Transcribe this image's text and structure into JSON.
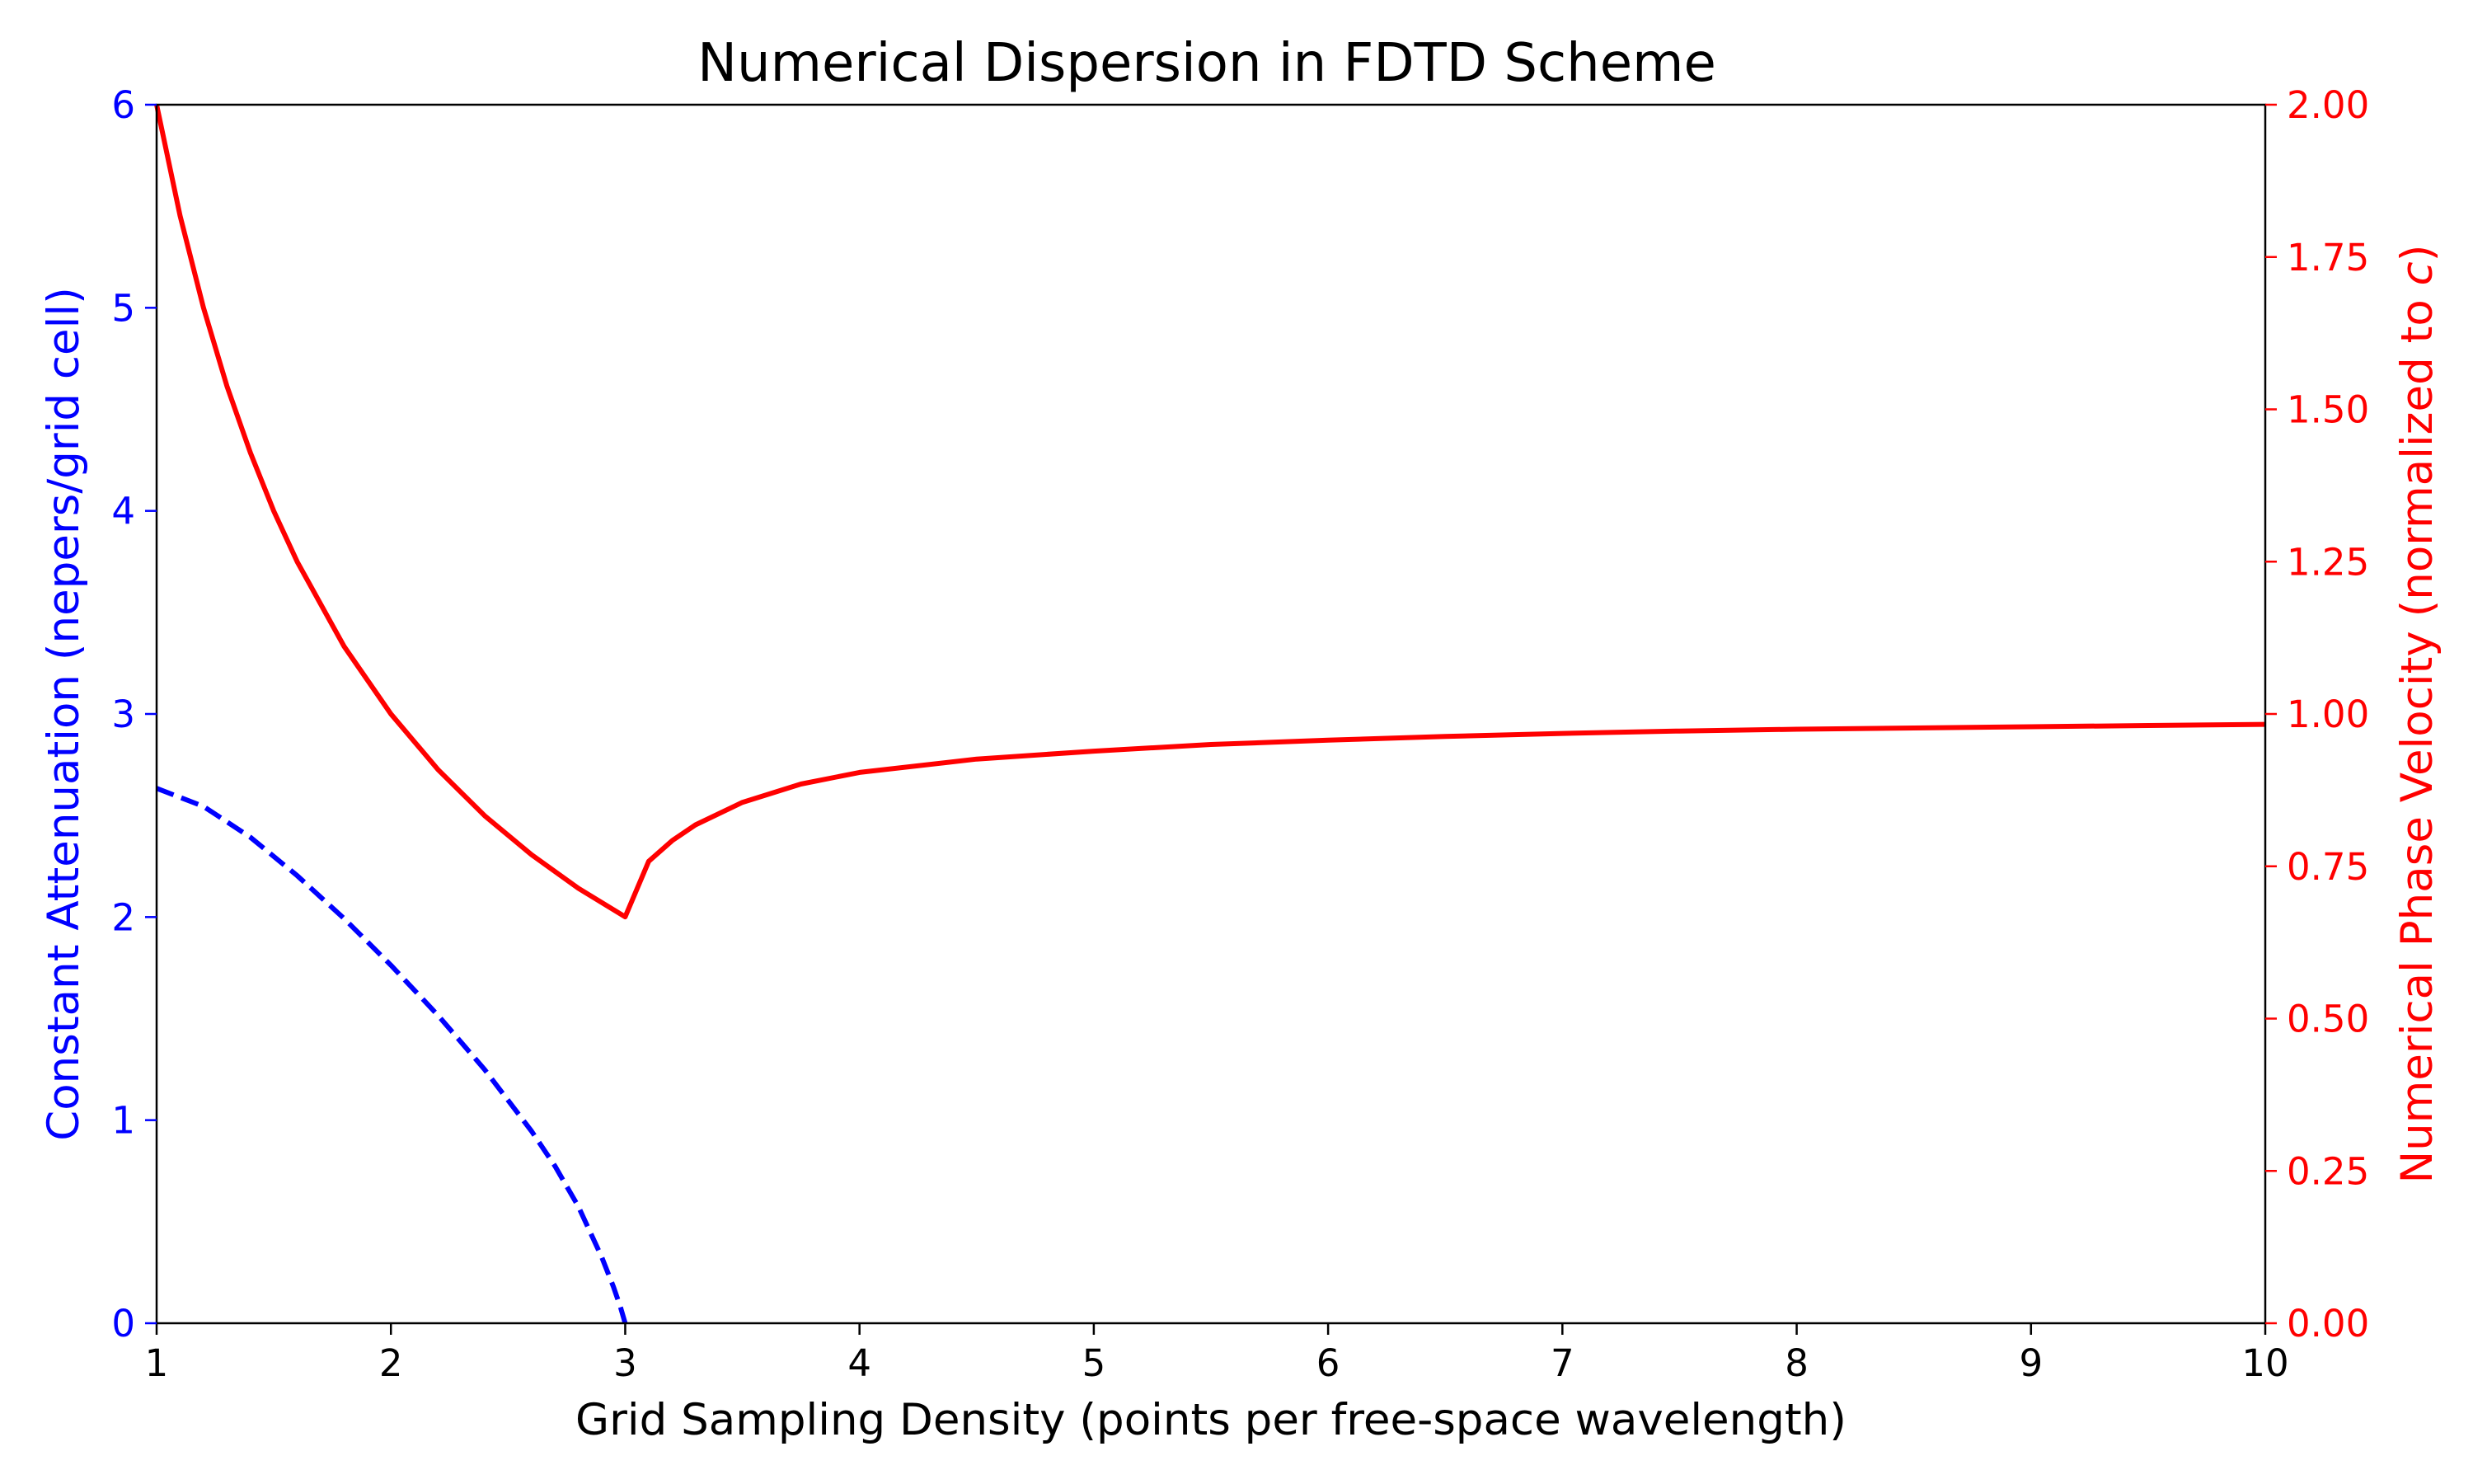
{
  "chart_data": {
    "type": "line",
    "title": "Numerical Dispersion in FDTD Scheme",
    "xlabel": "Grid Sampling Density (points per free-space wavelength)",
    "ylabel_left": "Constant Attenuation (nepers/grid cell)",
    "ylabel_right_prefix": "Numerical Phase Velocity (normalized to ",
    "ylabel_right_italic": "c",
    "ylabel_right_suffix": ")",
    "xlim": [
      1,
      10
    ],
    "ylim_left": [
      0,
      6
    ],
    "ylim_right": [
      0,
      2
    ],
    "x_ticks": [
      "1",
      "2",
      "3",
      "4",
      "5",
      "6",
      "7",
      "8",
      "9",
      "10"
    ],
    "y_left_ticks": [
      "0",
      "1",
      "2",
      "3",
      "4",
      "5",
      "6"
    ],
    "y_right_ticks": [
      "0.00",
      "0.25",
      "0.50",
      "0.75",
      "1.00",
      "1.25",
      "1.50",
      "1.75",
      "2.00"
    ],
    "grid": false,
    "colors": {
      "left_axis": "#0000ff",
      "right_axis": "#ff0000"
    },
    "series": [
      {
        "axis": "left",
        "style": "dashed",
        "color": "#0000ff",
        "x": [
          1.0,
          1.2,
          1.4,
          1.6,
          1.8,
          2.0,
          2.2,
          2.4,
          2.6,
          2.7,
          2.8,
          2.9,
          2.95,
          2.98,
          3.0
        ],
        "y": [
          2.634,
          2.545,
          2.393,
          2.204,
          1.993,
          1.763,
          1.517,
          1.249,
          0.946,
          0.774,
          0.575,
          0.325,
          0.179,
          0.078,
          0.0
        ]
      },
      {
        "axis": "right",
        "style": "solid",
        "color": "#ff0000",
        "x": [
          1.0,
          1.1,
          1.2,
          1.3,
          1.4,
          1.5,
          1.6,
          1.8,
          2.0,
          2.2,
          2.4,
          2.6,
          2.8,
          3.0,
          3.1,
          3.2,
          3.3,
          3.5,
          3.75,
          4.0,
          4.5,
          5.0,
          5.5,
          6.0,
          6.5,
          7.0,
          7.5,
          8.0,
          8.5,
          9.0,
          9.5,
          10.0
        ],
        "y": [
          2.0,
          1.818,
          1.667,
          1.538,
          1.429,
          1.333,
          1.25,
          1.111,
          1.0,
          0.909,
          0.833,
          0.769,
          0.714,
          0.667,
          0.758,
          0.792,
          0.818,
          0.855,
          0.885,
          0.904,
          0.926,
          0.939,
          0.95,
          0.957,
          0.963,
          0.968,
          0.972,
          0.975,
          0.977,
          0.979,
          0.981,
          0.983
        ]
      }
    ]
  }
}
